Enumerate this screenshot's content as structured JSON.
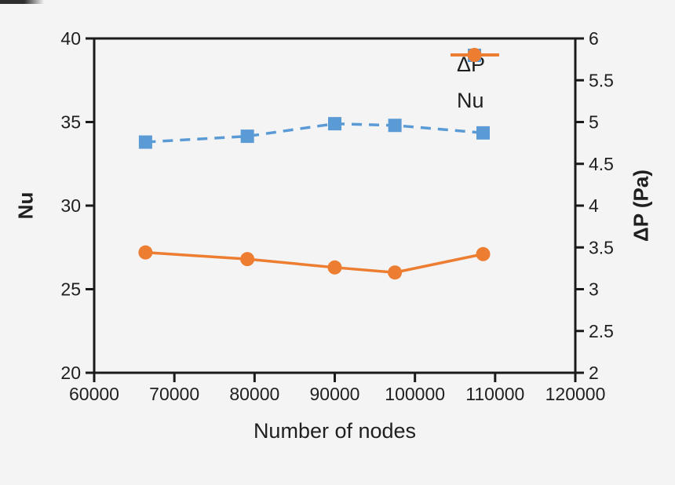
{
  "chart_data": {
    "type": "line",
    "title": "",
    "xlabel": "Number of nodes",
    "ylabel_left": "Nu",
    "ylabel_right": "ΔP (Pa)",
    "xlim": [
      60000,
      120000
    ],
    "ylim_left": [
      20,
      40
    ],
    "ylim_right": [
      2,
      6
    ],
    "x_ticks": [
      60000,
      70000,
      80000,
      90000,
      100000,
      110000,
      120000
    ],
    "left_ticks": [
      20,
      25,
      30,
      35,
      40
    ],
    "right_ticks": [
      2,
      2.5,
      3,
      3.5,
      4,
      4.5,
      5,
      5.5,
      6
    ],
    "grid": false,
    "legend_position": "top-right-inside",
    "x": [
      66400,
      79100,
      90000,
      97500,
      108500
    ],
    "series": [
      {
        "name": "ΔP",
        "axis": "right",
        "color": "#5b9bd5",
        "line_style": "dashed",
        "marker": "square",
        "values": [
          4.76,
          4.83,
          4.98,
          4.96,
          4.87
        ]
      },
      {
        "name": "Nu",
        "axis": "left",
        "color": "#ed7d31",
        "line_style": "solid",
        "marker": "circle",
        "values": [
          27.2,
          26.8,
          26.3,
          26.0,
          27.1
        ]
      }
    ]
  },
  "colors": {
    "frame": "#1a1a1a",
    "text": "#1f1f1f",
    "background": "#f4f4f5",
    "series_blue": "#5b9bd5",
    "series_orange": "#ed7d31"
  }
}
